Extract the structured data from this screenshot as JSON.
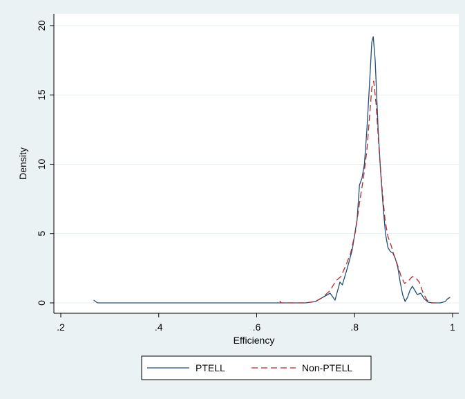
{
  "chart_data": {
    "type": "line",
    "title": "",
    "xlabel": "Efficiency",
    "ylabel": "Density",
    "xlim": [
      0.2,
      1.0
    ],
    "ylim": [
      0,
      20
    ],
    "xticks": [
      {
        "value": 0.2,
        "label": ".2"
      },
      {
        "value": 0.4,
        "label": ".4"
      },
      {
        "value": 0.6,
        "label": ".6"
      },
      {
        "value": 0.8,
        "label": ".8"
      },
      {
        "value": 1.0,
        "label": "1"
      }
    ],
    "yticks": [
      {
        "value": 0,
        "label": "0"
      },
      {
        "value": 5,
        "label": "5"
      },
      {
        "value": 10,
        "label": "10"
      },
      {
        "value": 15,
        "label": "15"
      },
      {
        "value": 20,
        "label": "20"
      }
    ],
    "grid": "horizontal",
    "legend": "bottom",
    "colors": {
      "background": "#eaf2f3",
      "plot_area": "#ffffff",
      "grid": "#e6eef0"
    },
    "series": [
      {
        "name": "PTELL",
        "color": "#1f4e79",
        "dash": "solid",
        "points": [
          [
            0.267,
            0.2
          ],
          [
            0.275,
            0.0
          ],
          [
            0.35,
            0.0
          ],
          [
            0.45,
            0.0
          ],
          [
            0.55,
            0.0
          ],
          [
            0.65,
            0.0
          ],
          [
            0.7,
            0.0
          ],
          [
            0.72,
            0.1
          ],
          [
            0.735,
            0.4
          ],
          [
            0.75,
            0.7
          ],
          [
            0.76,
            0.2
          ],
          [
            0.77,
            1.5
          ],
          [
            0.775,
            1.3
          ],
          [
            0.785,
            2.5
          ],
          [
            0.795,
            3.8
          ],
          [
            0.805,
            6.0
          ],
          [
            0.81,
            8.5
          ],
          [
            0.815,
            9.0
          ],
          [
            0.82,
            10.0
          ],
          [
            0.825,
            12.5
          ],
          [
            0.83,
            15.5
          ],
          [
            0.835,
            18.8
          ],
          [
            0.838,
            19.2
          ],
          [
            0.842,
            17.5
          ],
          [
            0.848,
            12.5
          ],
          [
            0.853,
            9.5
          ],
          [
            0.858,
            7.0
          ],
          [
            0.863,
            5.0
          ],
          [
            0.868,
            4.0
          ],
          [
            0.873,
            3.7
          ],
          [
            0.878,
            3.6
          ],
          [
            0.883,
            3.2
          ],
          [
            0.888,
            2.6
          ],
          [
            0.893,
            1.5
          ],
          [
            0.898,
            0.6
          ],
          [
            0.903,
            0.1
          ],
          [
            0.908,
            0.4
          ],
          [
            0.913,
            0.9
          ],
          [
            0.918,
            1.2
          ],
          [
            0.923,
            0.9
          ],
          [
            0.928,
            0.6
          ],
          [
            0.935,
            0.7
          ],
          [
            0.942,
            0.3
          ],
          [
            0.95,
            0.05
          ],
          [
            0.96,
            0.0
          ],
          [
            0.975,
            0.0
          ],
          [
            0.985,
            0.1
          ],
          [
            0.99,
            0.3
          ],
          [
            0.995,
            0.4
          ]
        ]
      },
      {
        "name": "Non-PTELL",
        "color": "#b5292e",
        "dash": "long-dash",
        "points": [
          [
            0.647,
            0.15
          ],
          [
            0.65,
            0.0
          ],
          [
            0.7,
            0.0
          ],
          [
            0.72,
            0.1
          ],
          [
            0.735,
            0.4
          ],
          [
            0.75,
            0.9
          ],
          [
            0.762,
            1.6
          ],
          [
            0.772,
            1.9
          ],
          [
            0.782,
            2.7
          ],
          [
            0.792,
            3.6
          ],
          [
            0.802,
            5.2
          ],
          [
            0.81,
            7.2
          ],
          [
            0.818,
            9.0
          ],
          [
            0.825,
            11.0
          ],
          [
            0.83,
            13.2
          ],
          [
            0.835,
            15.5
          ],
          [
            0.839,
            16.0
          ],
          [
            0.844,
            14.3
          ],
          [
            0.85,
            11.0
          ],
          [
            0.856,
            8.3
          ],
          [
            0.862,
            6.0
          ],
          [
            0.868,
            4.8
          ],
          [
            0.874,
            4.2
          ],
          [
            0.88,
            3.5
          ],
          [
            0.887,
            2.8
          ],
          [
            0.895,
            1.9
          ],
          [
            0.902,
            1.4
          ],
          [
            0.91,
            1.6
          ],
          [
            0.918,
            1.9
          ],
          [
            0.925,
            1.8
          ],
          [
            0.932,
            1.5
          ],
          [
            0.94,
            0.7
          ],
          [
            0.948,
            0.2
          ],
          [
            0.955,
            0.0
          ],
          [
            0.965,
            0.0
          ]
        ]
      }
    ]
  }
}
